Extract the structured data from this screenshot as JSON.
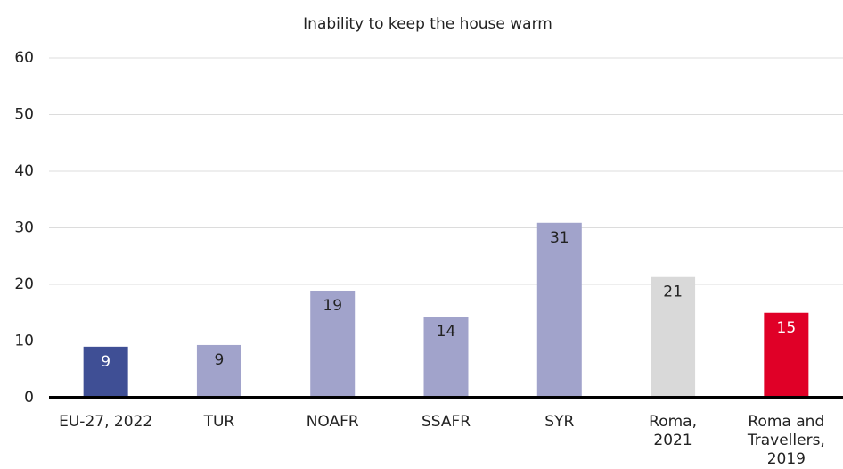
{
  "chart_data": {
    "type": "bar",
    "title": "Inability to keep the house warm",
    "categories": [
      "EU-27, 2022",
      "TUR",
      "NOAFR",
      "SSAFR",
      "SYR",
      "Roma,\n2021",
      "Roma and\nTravellers, 2019"
    ],
    "values": [
      9,
      9.3,
      18.9,
      14.3,
      30.9,
      21.3,
      15
    ],
    "value_labels": [
      "9",
      "9",
      "19",
      "14",
      "31",
      "21",
      "15"
    ],
    "colors": [
      "#3f4f95",
      "#a1a3cb",
      "#a1a3cb",
      "#a1a3cb",
      "#a1a3cb",
      "#d9d9d9",
      "#e00027"
    ],
    "ylim": [
      0,
      60
    ],
    "yticks": [
      0,
      10,
      20,
      30,
      40,
      50,
      60
    ],
    "grid": true
  }
}
